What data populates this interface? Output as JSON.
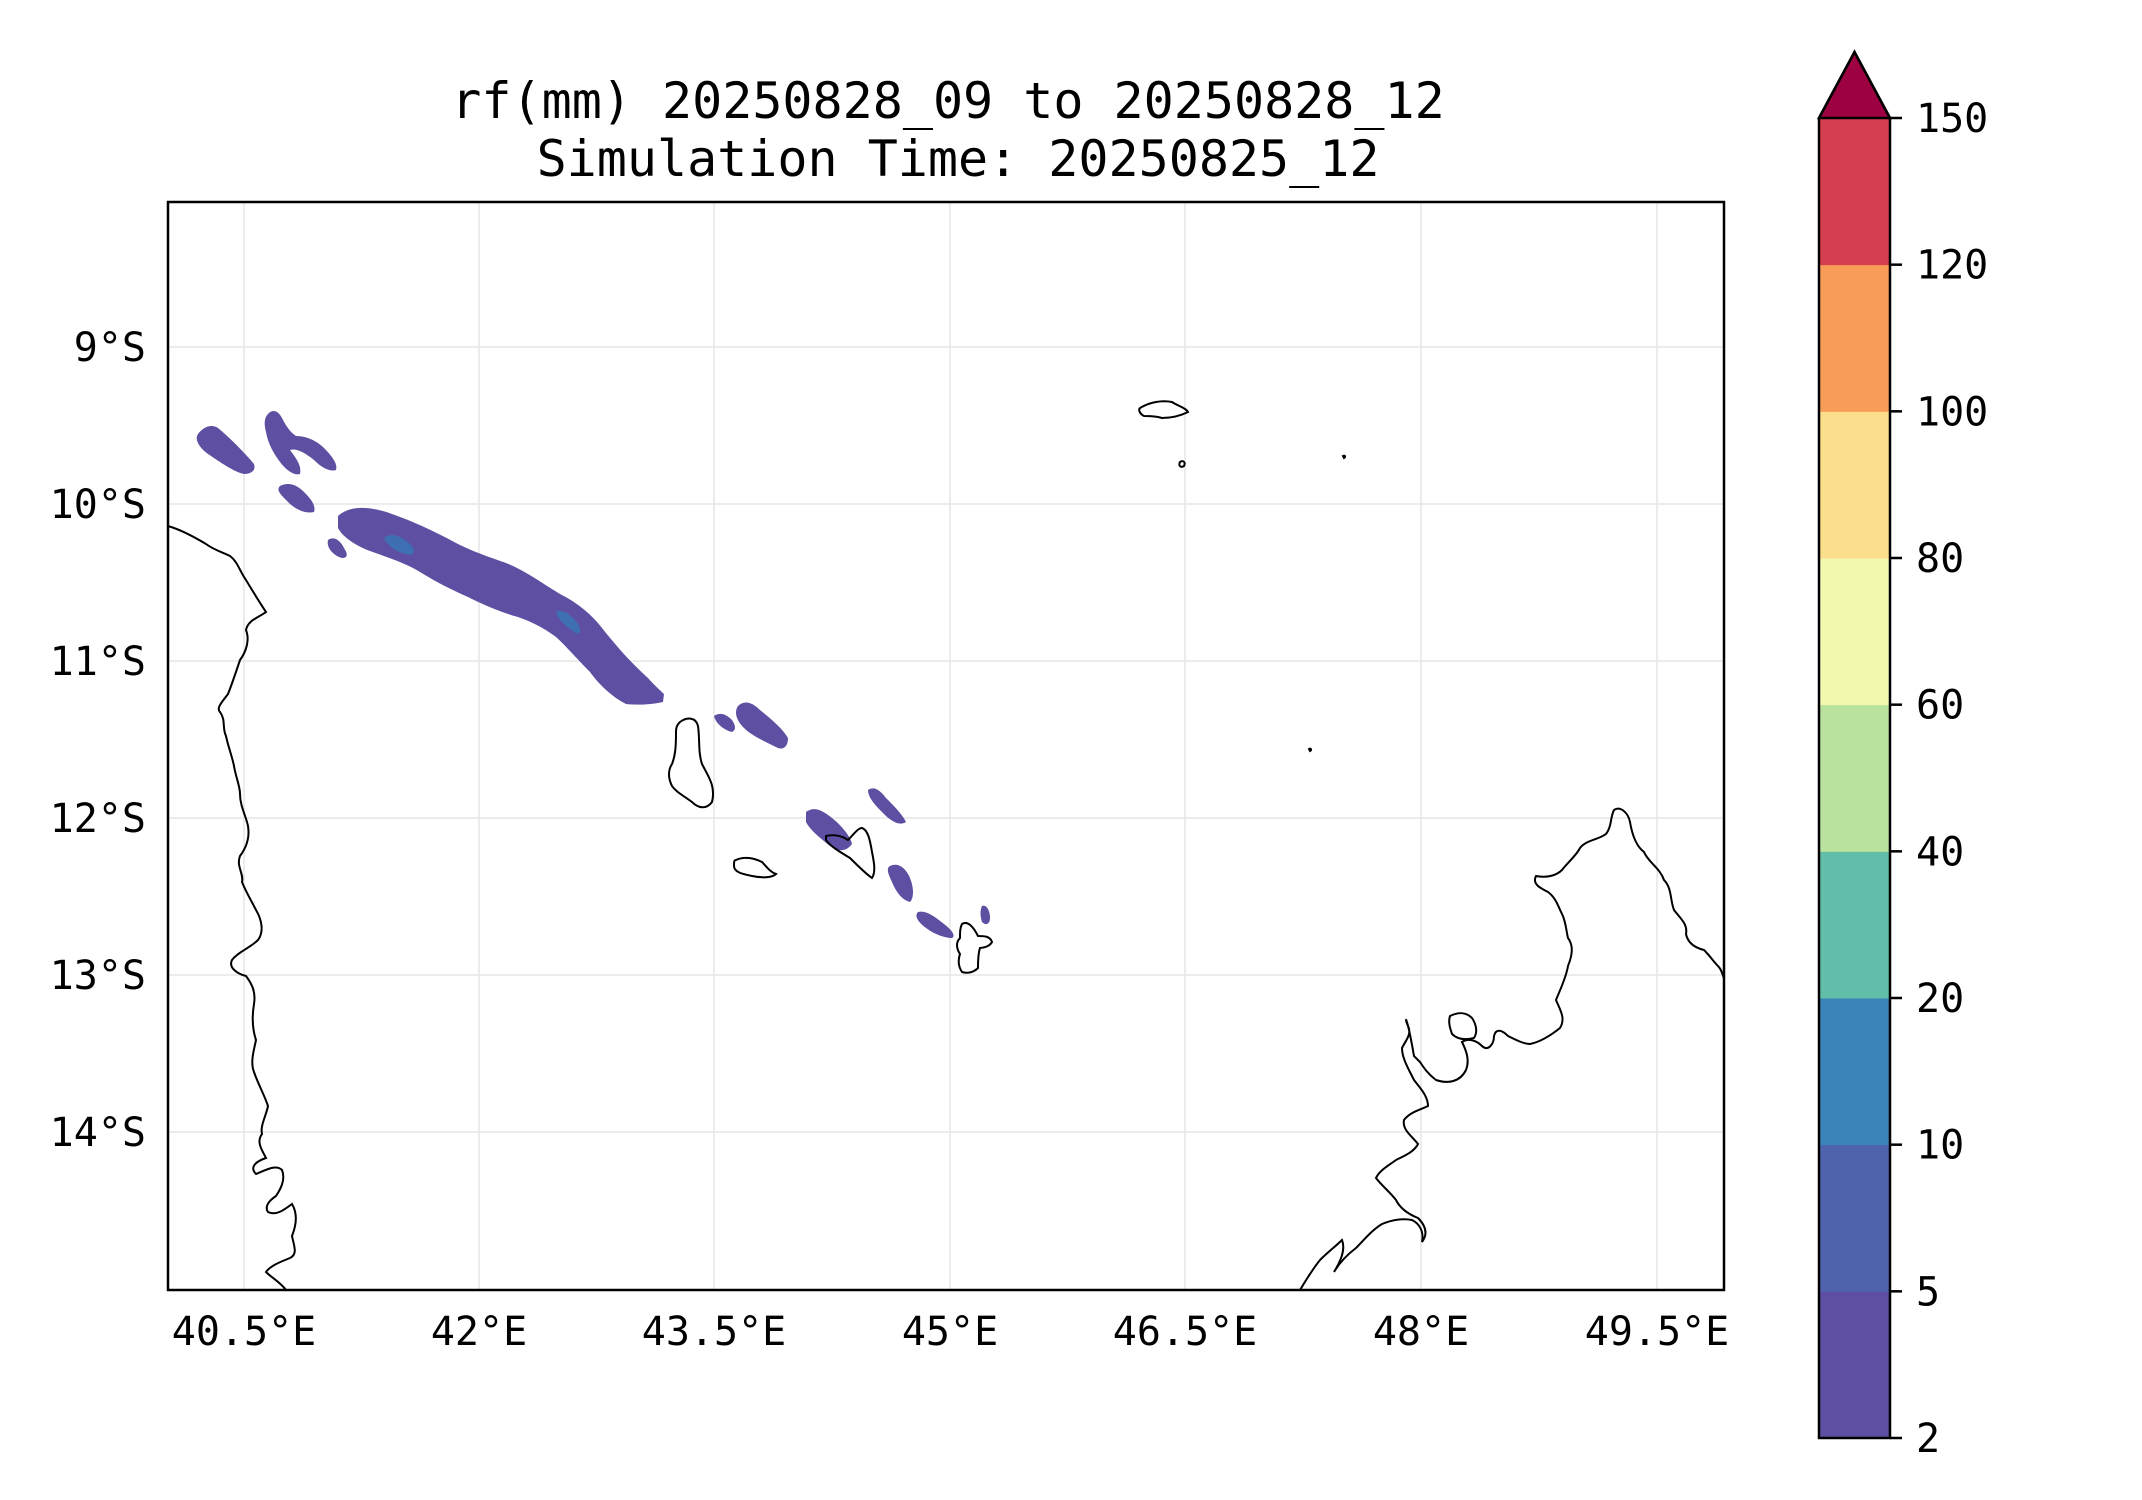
{
  "map": {
    "title_line1": "rf(mm) 20250828_09 to 20250828_12",
    "title_line2": "Simulation Time: 20250825_12",
    "lon_ticks": [
      "40.5°E",
      "42°E",
      "43.5°E",
      "45°E",
      "46.5°E",
      "48°E",
      "49.5°E"
    ],
    "lat_ticks": [
      "9°S",
      "10°S",
      "11°S",
      "12°S",
      "13°S",
      "14°S"
    ],
    "gridlines": true,
    "coastline_color": "#000000",
    "rainfall_fill_color": "#5e4fa2",
    "rainfall_core_color": "#3f6fb3"
  },
  "colorbar": {
    "levels": [
      "2",
      "5",
      "10",
      "20",
      "40",
      "60",
      "80",
      "100",
      "120",
      "150"
    ],
    "colors": [
      "#5e4fa2",
      "#4f63ad",
      "#3a83b8",
      "#62bda9",
      "#b9e29e",
      "#f2f8ad",
      "#fbde8b",
      "#f89d58",
      "#d53e4f"
    ],
    "extend_color": "#9e0142",
    "extend": "max"
  }
}
